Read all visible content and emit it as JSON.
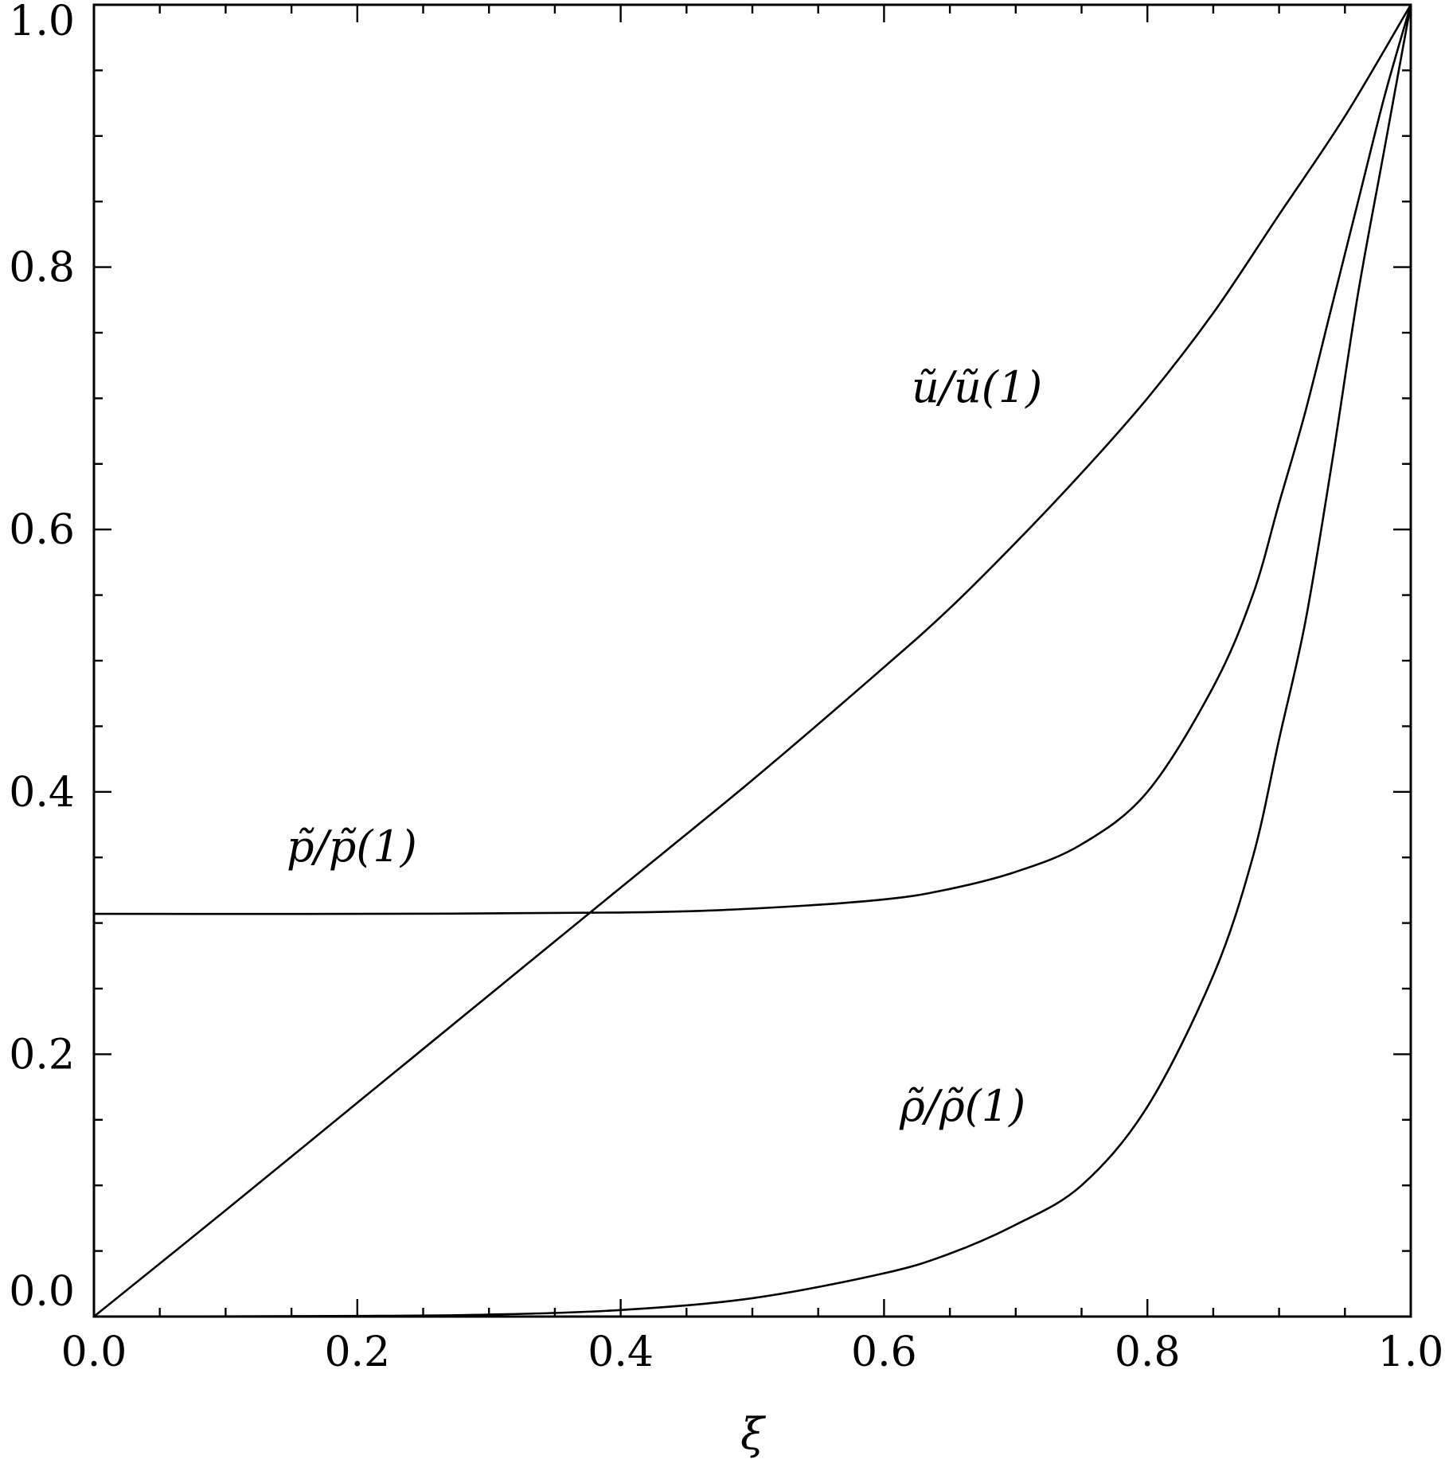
{
  "chart_data": {
    "type": "line",
    "title": "",
    "xlabel": "ξ",
    "ylabel": "",
    "xlim": [
      0.0,
      1.0
    ],
    "ylim": [
      0.0,
      1.0
    ],
    "grid": false,
    "x_ticks": [
      "0.0",
      "0.2",
      "0.4",
      "0.6",
      "0.8",
      "1.0"
    ],
    "y_ticks": [
      "0.0",
      "0.2",
      "0.4",
      "0.6",
      "0.8",
      "1.0"
    ],
    "annotations": {
      "u_label": "ũ/ũ(1)",
      "p_label": "p̃/p̃(1)",
      "rho_label": "ρ̃/ρ̃(1)"
    },
    "series": [
      {
        "key": "u",
        "x": [
          0.0,
          0.1,
          0.2,
          0.3,
          0.4,
          0.5,
          0.6,
          0.65,
          0.7,
          0.75,
          0.8,
          0.85,
          0.9,
          0.95,
          1.0
        ],
        "y": [
          0.0,
          0.081,
          0.163,
          0.245,
          0.327,
          0.409,
          0.495,
          0.54,
          0.59,
          0.643,
          0.7,
          0.765,
          0.84,
          0.915,
          1.0
        ]
      },
      {
        "key": "p",
        "x": [
          0.0,
          0.2,
          0.4,
          0.5,
          0.6,
          0.65,
          0.7,
          0.75,
          0.8,
          0.85,
          0.88,
          0.9,
          0.92,
          0.94,
          0.96,
          0.98,
          1.0
        ],
        "y": [
          0.307,
          0.307,
          0.308,
          0.311,
          0.318,
          0.326,
          0.339,
          0.36,
          0.4,
          0.48,
          0.55,
          0.62,
          0.69,
          0.77,
          0.85,
          0.93,
          1.0
        ]
      },
      {
        "key": "rho",
        "x": [
          0.0,
          0.2,
          0.3,
          0.4,
          0.5,
          0.6,
          0.65,
          0.7,
          0.75,
          0.8,
          0.85,
          0.88,
          0.9,
          0.92,
          0.94,
          0.96,
          0.98,
          1.0
        ],
        "y": [
          0.0,
          0.0005,
          0.0015,
          0.005,
          0.014,
          0.033,
          0.048,
          0.07,
          0.1,
          0.16,
          0.26,
          0.35,
          0.44,
          0.53,
          0.65,
          0.78,
          0.89,
          1.0
        ]
      }
    ]
  }
}
